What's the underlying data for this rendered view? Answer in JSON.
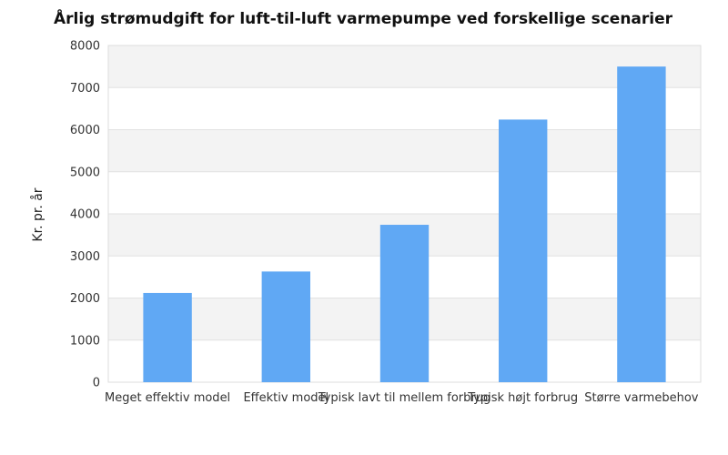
{
  "chart_data": {
    "type": "bar",
    "title": "Årlig strømudgift for luft-til-luft varmepumpe ved forskellige scenarier",
    "xlabel": "",
    "ylabel": "Kr. pr. år",
    "categories": [
      "Meget effektiv model",
      "Effektiv model",
      "Typisk lavt til mellem forbrug",
      "Typisk højt forbrug",
      "Større varmebehov"
    ],
    "values": [
      2120,
      2630,
      3740,
      6240,
      7500
    ],
    "ylim": [
      0,
      8000
    ],
    "yticks": [
      0,
      1000,
      2000,
      3000,
      4000,
      5000,
      6000,
      7000,
      8000
    ],
    "grid": true,
    "legend": "none",
    "colors": {
      "bar": "#60a8f4",
      "band": "#f3f3f3",
      "grid": "#e2e2e2",
      "frame": "#dddddd"
    }
  }
}
